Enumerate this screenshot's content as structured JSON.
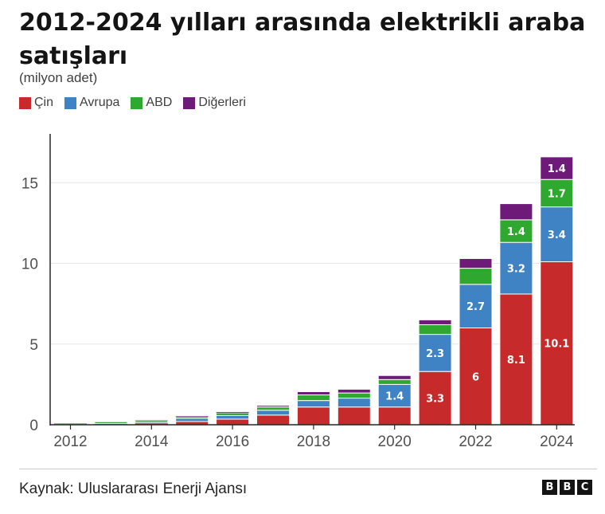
{
  "header": {
    "title": "2012-2024 yılları arasında elektrikli araba satışları",
    "subtitle": "(milyon adet)"
  },
  "colors": {
    "cin": "#c72a2a",
    "avrupa": "#3f83c4",
    "abd": "#2fa82f",
    "digerleri": "#6d1a78"
  },
  "legend": [
    {
      "label": "Çin",
      "color": "#c72a2a"
    },
    {
      "label": "Avrupa",
      "color": "#3f83c4"
    },
    {
      "label": "ABD",
      "color": "#2fa82f"
    },
    {
      "label": "Diğerleri",
      "color": "#6d1a78"
    }
  ],
  "chart_data": {
    "type": "bar",
    "stacked": true,
    "title": "2012-2024 yılları arasında elektrikli araba satışları",
    "subtitle": "(milyon adet)",
    "categories": [
      "2012",
      "2013",
      "2014",
      "2015",
      "2016",
      "2017",
      "2018",
      "2019",
      "2020",
      "2021",
      "2022",
      "2023",
      "2024"
    ],
    "x_tick_labels": [
      "2012",
      "2014",
      "2016",
      "2018",
      "2020",
      "2022",
      "2024"
    ],
    "y_ticks": [
      0,
      5,
      10,
      15
    ],
    "ylim": [
      0,
      17.5
    ],
    "grid": true,
    "legend_position": "top-left",
    "series": [
      {
        "name": "Çin",
        "values": [
          0.01,
          0.02,
          0.05,
          0.2,
          0.35,
          0.6,
          1.1,
          1.1,
          1.1,
          3.3,
          6.0,
          8.1,
          10.1
        ],
        "labels": [
          "",
          "",
          "",
          "",
          "",
          "",
          "",
          "",
          "",
          "3.3",
          "6",
          "8.1",
          "10.1"
        ]
      },
      {
        "name": "Avrupa",
        "values": [
          0.02,
          0.05,
          0.08,
          0.2,
          0.22,
          0.3,
          0.4,
          0.55,
          1.4,
          2.3,
          2.7,
          3.2,
          3.4
        ],
        "labels": [
          "",
          "",
          "",
          "",
          "",
          "",
          "",
          "",
          "1.4",
          "2.3",
          "2.7",
          "3.2",
          "3.4"
        ]
      },
      {
        "name": "ABD",
        "values": [
          0.05,
          0.1,
          0.12,
          0.11,
          0.16,
          0.2,
          0.35,
          0.32,
          0.3,
          0.6,
          1.0,
          1.4,
          1.7
        ],
        "labels": [
          "",
          "",
          "",
          "",
          "",
          "",
          "",
          "",
          "",
          "",
          "",
          "1.4",
          "1.7"
        ]
      },
      {
        "name": "Diğerleri",
        "values": [
          0.0,
          0.01,
          0.02,
          0.03,
          0.05,
          0.1,
          0.2,
          0.23,
          0.25,
          0.3,
          0.6,
          1.0,
          1.4
        ],
        "labels": [
          "",
          "",
          "",
          "",
          "",
          "",
          "",
          "",
          "",
          "",
          "",
          "",
          "1.4"
        ]
      }
    ]
  },
  "footer": {
    "source": "Kaynak: Uluslararası Enerji Ajansı",
    "logo_letters": [
      "B",
      "B",
      "C"
    ]
  }
}
